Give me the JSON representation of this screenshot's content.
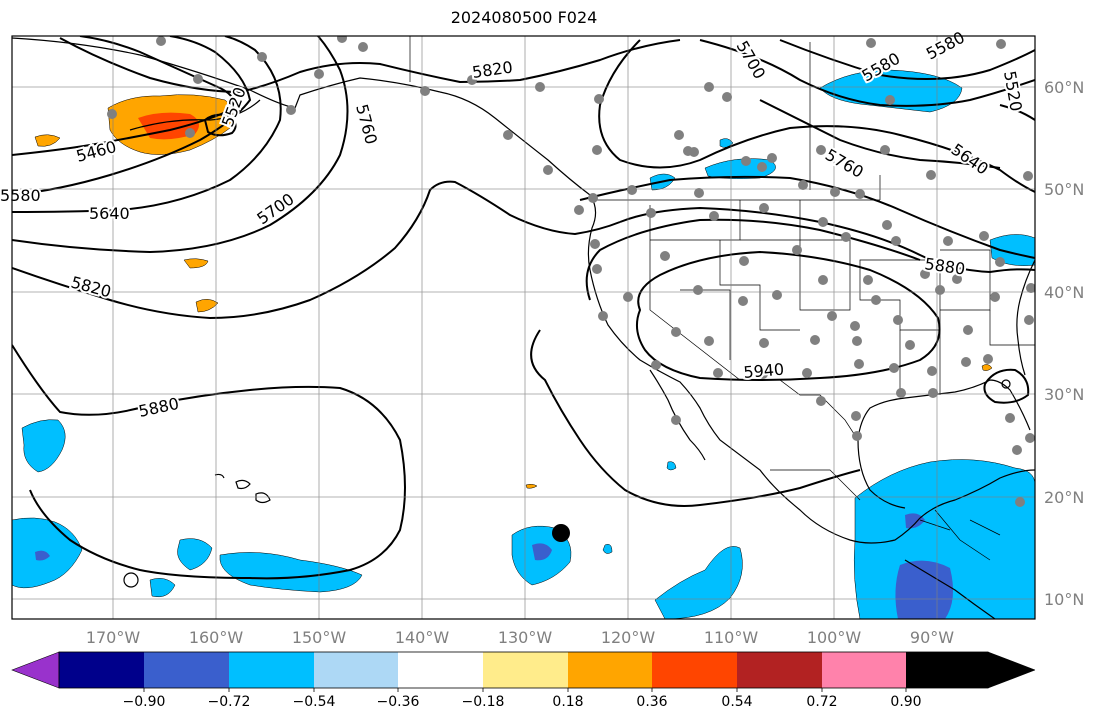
{
  "title": "2024080500 F024",
  "map": {
    "lon_labels": [
      "170°W",
      "160°W",
      "150°W",
      "140°W",
      "130°W",
      "120°W",
      "110°W",
      "100°W",
      "90°W"
    ],
    "lat_labels": [
      "60°N",
      "50°N",
      "40°N",
      "30°N",
      "20°N",
      "10°N"
    ],
    "contour_labels": [
      "5460",
      "5520",
      "5580",
      "5640",
      "5700",
      "5760",
      "5820",
      "5880",
      "5940",
      "5820",
      "5760",
      "5700",
      "5640",
      "5580",
      "5580",
      "5520",
      "5880"
    ],
    "grid": true
  },
  "colorbar": {
    "tick_labels": [
      "−0.90",
      "−0.72",
      "−0.54",
      "−0.36",
      "−0.18",
      "0.18",
      "0.36",
      "0.54",
      "0.72",
      "0.90"
    ],
    "colors": [
      "#9932cc",
      "#00008b",
      "#3a5fcd",
      "#00bfff",
      "#add8f5",
      "#ffffff",
      "#ffec8b",
      "#ffa500",
      "#ff4500",
      "#b22222",
      "#ff82ab"
    ]
  },
  "colors": {
    "negative_strong": "#3a5fcd",
    "negative": "#00bfff",
    "positive": "#ffa500",
    "positive_strong": "#ff4500",
    "station": "#808080",
    "contour": "#000000"
  }
}
